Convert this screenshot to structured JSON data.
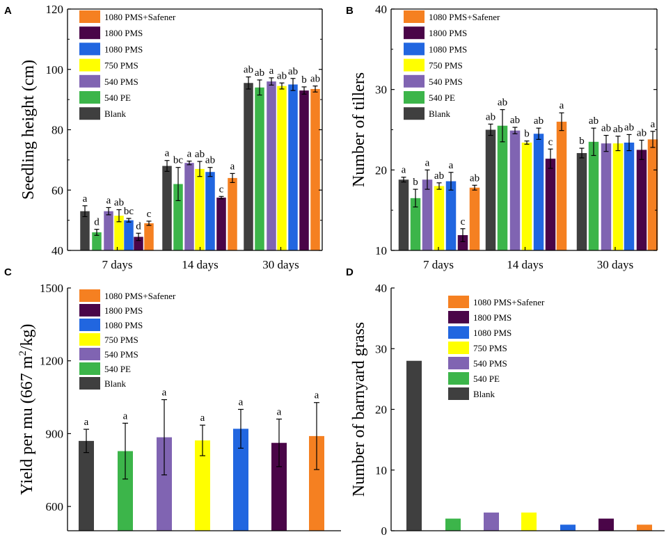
{
  "chart_data": [
    {
      "panel": "A",
      "type": "bar",
      "ylabel": "Seedling height (cm)",
      "xlabel": "",
      "ylim": [
        40,
        120
      ],
      "yticks": [
        40,
        60,
        80,
        100,
        120
      ],
      "categories": [
        "7 days",
        "14 days",
        "30 days"
      ],
      "legend_order": [
        "1080 PMS+Safener",
        "1800 PMS",
        "1080 PMS",
        "750 PMS",
        "540 PMS",
        "540 PE",
        "Blank"
      ],
      "series": [
        {
          "name": "Blank",
          "color": "#3f3f3f",
          "values": [
            53,
            68,
            95.5
          ],
          "errors": [
            1.8,
            1.8,
            2
          ],
          "labels": [
            "a",
            "a",
            "ab"
          ]
        },
        {
          "name": "540 PE",
          "color": "#3cb54a",
          "values": [
            46,
            62,
            94
          ],
          "errors": [
            1,
            5.5,
            2.5
          ],
          "labels": [
            "d",
            "bc",
            "ab"
          ]
        },
        {
          "name": "540 PMS",
          "color": "#8064b2",
          "values": [
            53,
            69,
            96
          ],
          "errors": [
            1.2,
            0.6,
            1.2
          ],
          "labels": [
            "a",
            "a",
            "a"
          ]
        },
        {
          "name": "750 PMS",
          "color": "#ffff00",
          "values": [
            51.5,
            67,
            94.5
          ],
          "errors": [
            2,
            2.5,
            1
          ],
          "labels": [
            "ab",
            "ab",
            "ab"
          ]
        },
        {
          "name": "1080 PMS",
          "color": "#2166e0",
          "values": [
            50,
            66,
            95
          ],
          "errors": [
            0.6,
            1.5,
            2
          ],
          "labels": [
            "bc",
            "ab",
            "ab"
          ]
        },
        {
          "name": "1800 PMS",
          "color": "#4a0548",
          "values": [
            44.5,
            57.5,
            93
          ],
          "errors": [
            1.2,
            0.4,
            1.2
          ],
          "labels": [
            "d",
            "c",
            "b"
          ]
        },
        {
          "name": "1080 PMS+Safener",
          "color": "#f58021",
          "values": [
            49,
            64,
            93.5
          ],
          "errors": [
            0.7,
            1.5,
            1
          ],
          "labels": [
            "c",
            "a",
            "ab"
          ]
        }
      ]
    },
    {
      "panel": "B",
      "type": "bar",
      "ylabel": "Number of tillers",
      "xlabel": "",
      "ylim": [
        10,
        40
      ],
      "yticks": [
        10,
        20,
        30,
        40
      ],
      "categories": [
        "7 days",
        "14 days",
        "30 days"
      ],
      "legend_order": [
        "1080 PMS+Safener",
        "1800 PMS",
        "1080 PMS",
        "750 PMS",
        "540 PMS",
        "540 PE",
        "Blank"
      ],
      "series": [
        {
          "name": "Blank",
          "color": "#3f3f3f",
          "values": [
            18.8,
            25,
            22.1
          ],
          "errors": [
            0.3,
            0.7,
            0.6
          ],
          "labels": [
            "a",
            "ab",
            "b"
          ]
        },
        {
          "name": "540 PE",
          "color": "#3cb54a",
          "values": [
            16.5,
            25.5,
            23.5
          ],
          "errors": [
            1.1,
            2,
            1.7
          ],
          "labels": [
            "b",
            "ab",
            "ab"
          ]
        },
        {
          "name": "540 PMS",
          "color": "#8064b2",
          "values": [
            18.8,
            24.9,
            23.3
          ],
          "errors": [
            1.2,
            0.4,
            1
          ],
          "labels": [
            "a",
            "ab",
            "ab"
          ]
        },
        {
          "name": "750 PMS",
          "color": "#ffff00",
          "values": [
            18,
            23.4,
            23.3
          ],
          "errors": [
            0.4,
            0.2,
            0.9
          ],
          "labels": [
            "ab",
            "b",
            "ab"
          ]
        },
        {
          "name": "1080 PMS",
          "color": "#2166e0",
          "values": [
            18.6,
            24.5,
            23.4
          ],
          "errors": [
            1.1,
            0.7,
            1
          ],
          "labels": [
            "a",
            "ab",
            "ab"
          ]
        },
        {
          "name": "1800 PMS",
          "color": "#4a0548",
          "values": [
            11.9,
            21.4,
            22.5
          ],
          "errors": [
            0.8,
            1.2,
            1.2
          ],
          "labels": [
            "c",
            "c",
            "ab"
          ]
        },
        {
          "name": "1080 PMS+Safener",
          "color": "#f58021",
          "values": [
            17.8,
            26,
            23.8
          ],
          "errors": [
            0.3,
            1.1,
            1
          ],
          "labels": [
            "ab",
            "a",
            "a"
          ]
        }
      ]
    },
    {
      "panel": "C",
      "type": "bar",
      "ylabel": "Yield per mu (667 m²/kg)",
      "ylabel_main": "Yield per mu (667 m",
      "ylabel_sup": "2",
      "ylabel_tail": "/kg)",
      "xlabel": "",
      "ylim": [
        500,
        1500
      ],
      "yticks": [
        600,
        900,
        1200,
        1500
      ],
      "categories": [
        "Blank",
        "540 PE",
        "540 PMS",
        "750 PMS",
        "1080 PMS",
        "1800 PMS",
        "1080 PMS+Safener"
      ],
      "legend_order": [
        "1080 PMS+Safener",
        "1800 PMS",
        "1080 PMS",
        "750 PMS",
        "540 PMS",
        "540 PE",
        "Blank"
      ],
      "colors": [
        "#3f3f3f",
        "#3cb54a",
        "#8064b2",
        "#ffff00",
        "#2166e0",
        "#4a0548",
        "#f58021"
      ],
      "values": [
        870,
        828,
        885,
        872,
        920,
        862,
        890
      ],
      "errors": [
        48,
        115,
        155,
        63,
        80,
        98,
        138
      ],
      "labels": [
        "a",
        "a",
        "a",
        "a",
        "a",
        "a",
        "a"
      ]
    },
    {
      "panel": "D",
      "type": "bar",
      "ylabel": "Number of barnyard grass",
      "xlabel": "",
      "ylim": [
        0,
        40
      ],
      "yticks": [
        0,
        10,
        20,
        30,
        40
      ],
      "categories": [
        "Blank",
        "540 PE",
        "540 PMS",
        "750 PMS",
        "1080 PMS",
        "1800 PMS",
        "1080 PMS+Safener"
      ],
      "legend_order": [
        "1080 PMS+Safener",
        "1800 PMS",
        "1080 PMS",
        "750 PMS",
        "540 PMS",
        "540 PE",
        "Blank"
      ],
      "colors": [
        "#3f3f3f",
        "#3cb54a",
        "#8064b2",
        "#ffff00",
        "#2166e0",
        "#4a0548",
        "#f58021"
      ],
      "values": [
        28,
        2,
        3,
        3,
        1,
        2,
        1
      ]
    }
  ]
}
